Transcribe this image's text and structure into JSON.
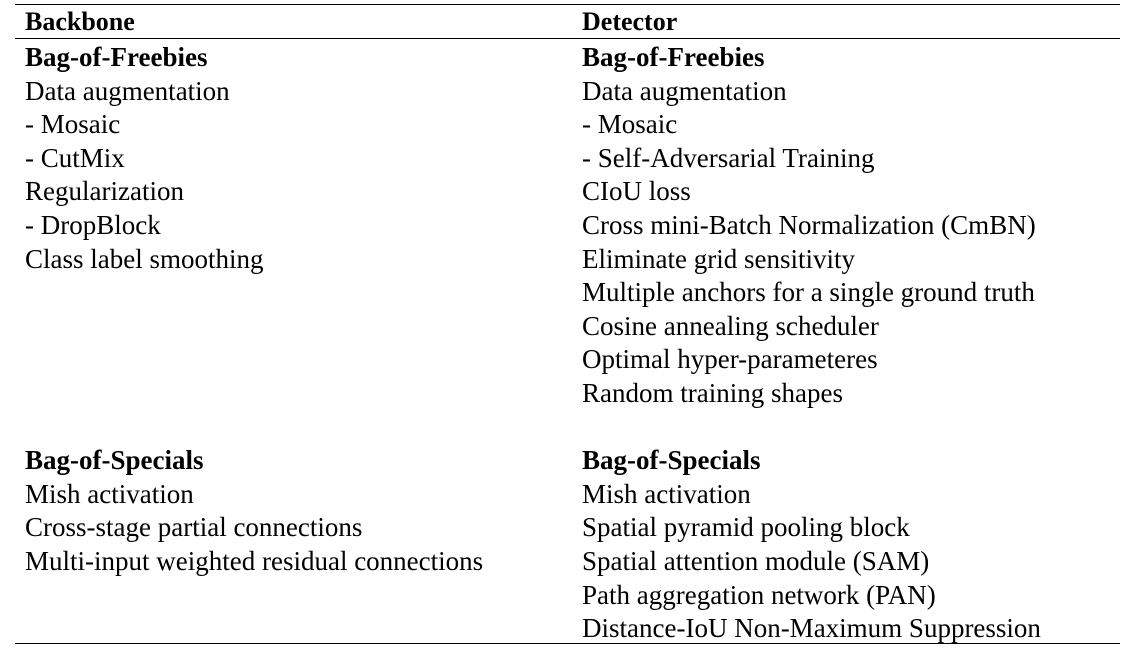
{
  "table": {
    "headers": {
      "backbone": "Backbone",
      "detector": "Detector"
    },
    "backbone": {
      "freebies_title": "Bag-of-Freebies",
      "freebies": [
        "Data augmentation",
        "- Mosaic",
        "- CutMix",
        "Regularization",
        "- DropBlock",
        "Class label smoothing"
      ],
      "specials_title": "Bag-of-Specials",
      "specials": [
        "Mish activation",
        "Cross-stage partial connections",
        "Multi-input weighted residual connections"
      ]
    },
    "detector": {
      "freebies_title": "Bag-of-Freebies",
      "freebies": [
        "Data augmentation",
        "- Mosaic",
        "- Self-Adversarial Training",
        "CIoU loss",
        "Cross mini-Batch Normalization (CmBN)",
        "Eliminate grid sensitivity",
        "Multiple anchors for a single ground truth",
        "Cosine annealing scheduler",
        "Optimal hyper-parameteres",
        "Random training shapes"
      ],
      "specials_title": "Bag-of-Specials",
      "specials": [
        "Mish activation",
        "Spatial pyramid pooling block",
        "Spatial attention module (SAM)",
        "Path aggregation network (PAN)",
        "Distance-IoU Non-Maximum Suppression"
      ]
    }
  }
}
